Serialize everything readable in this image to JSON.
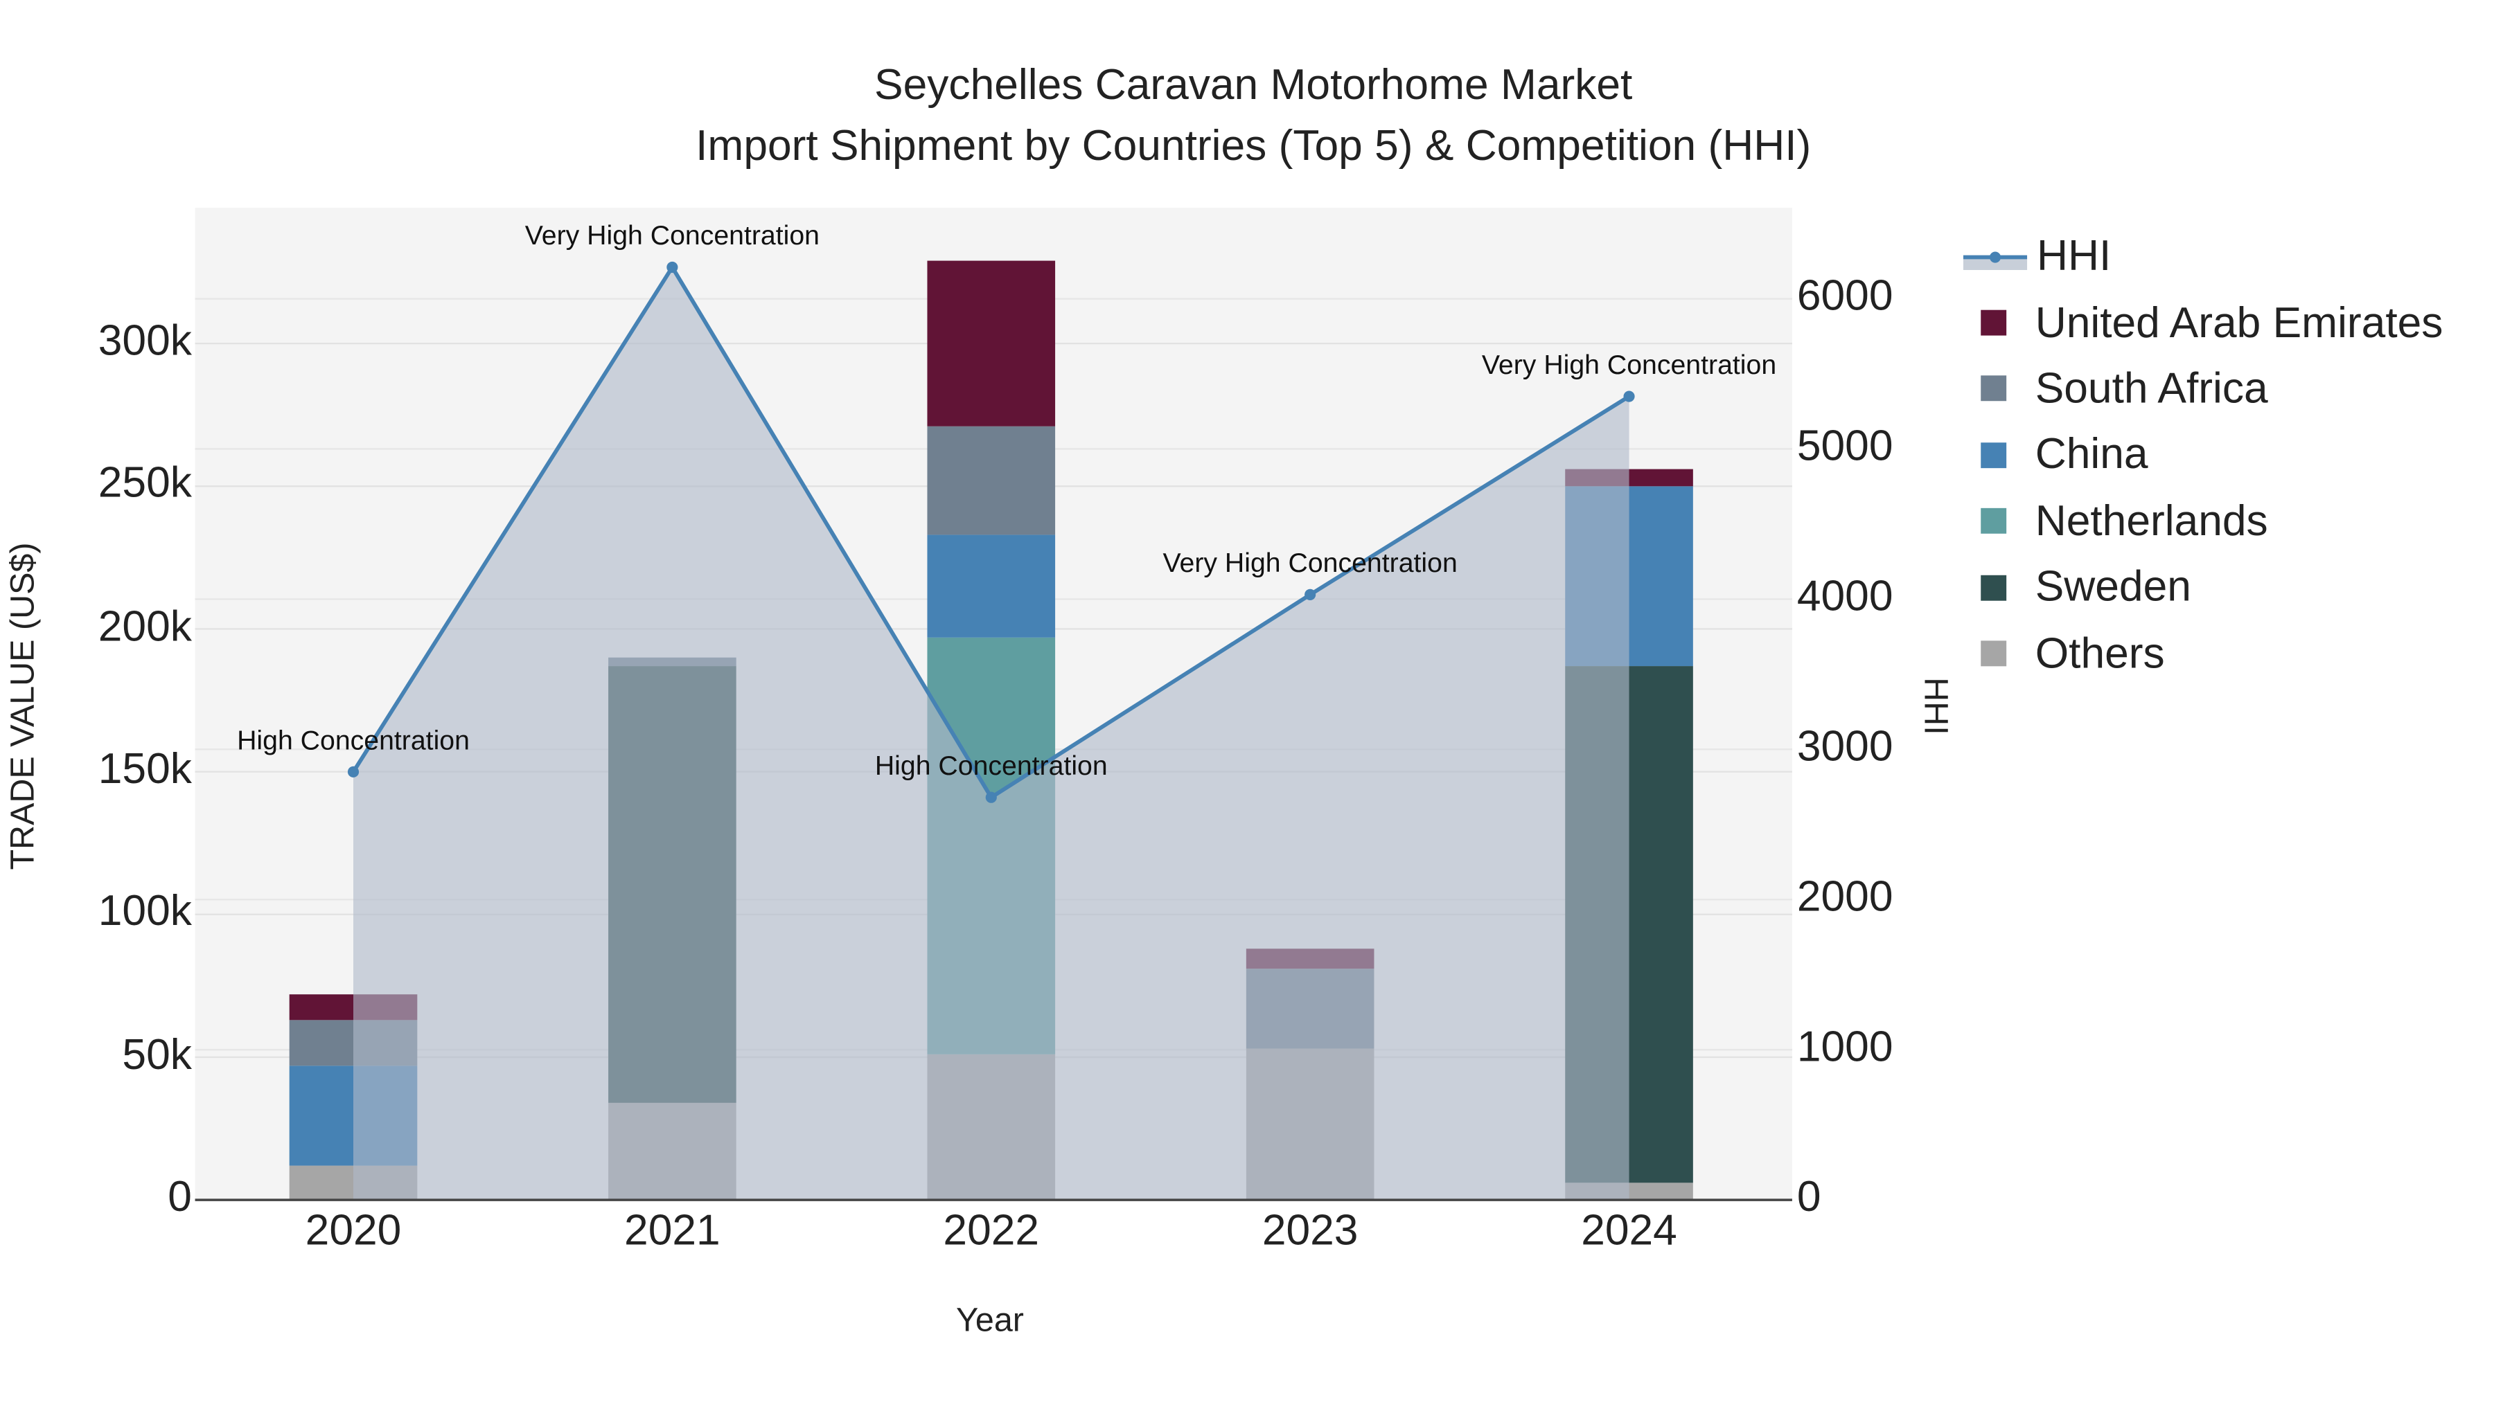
{
  "chart_data": {
    "type": "bar+line",
    "title": "Seychelles Caravan Motorhome Market",
    "subtitle": "Import Shipment by Countries (Top 5) & Competition (HHI)",
    "xlabel": "Year",
    "ylabel": "TRADE VALUE (US$)",
    "y2label": "HHI",
    "categories": [
      "2020",
      "2021",
      "2022",
      "2023",
      "2024"
    ],
    "ylim": [
      0,
      345000
    ],
    "y2lim": [
      0,
      6600
    ],
    "yticks": [
      "0",
      "50k",
      "100k",
      "150k",
      "200k",
      "250k",
      "300k"
    ],
    "y2ticks": [
      "0",
      "1000",
      "2000",
      "3000",
      "4000",
      "5000",
      "6000"
    ],
    "series": [
      {
        "name": "Others",
        "color": "#a6a6a6",
        "values": [
          12000,
          34000,
          51000,
          53000,
          6000
        ]
      },
      {
        "name": "Sweden",
        "color": "#2f4f4f",
        "values": [
          0,
          153000,
          0,
          0,
          181000
        ]
      },
      {
        "name": "Netherlands",
        "color": "#5f9ea0",
        "values": [
          0,
          0,
          146000,
          0,
          0
        ]
      },
      {
        "name": "China",
        "color": "#4682b4",
        "values": [
          35000,
          0,
          36000,
          0,
          63000
        ]
      },
      {
        "name": "South Africa",
        "color": "#708090",
        "values": [
          16000,
          3000,
          38000,
          28000,
          0
        ]
      },
      {
        "name": "United Arab Emirates",
        "color": "#611436",
        "values": [
          9000,
          0,
          58000,
          7000,
          6000
        ]
      }
    ],
    "hhi": {
      "name": "HHI",
      "color": "#4682b4",
      "values": [
        2850,
        6210,
        2680,
        4030,
        5350
      ],
      "annotations": [
        "High Concentration",
        "Very High Concentration",
        "High Concentration",
        "Very High Concentration",
        "Very High Concentration"
      ]
    },
    "legend": [
      "HHI",
      "United Arab Emirates",
      "South Africa",
      "China",
      "Netherlands",
      "Sweden",
      "Others"
    ],
    "legend_position": "right",
    "grid": true
  }
}
